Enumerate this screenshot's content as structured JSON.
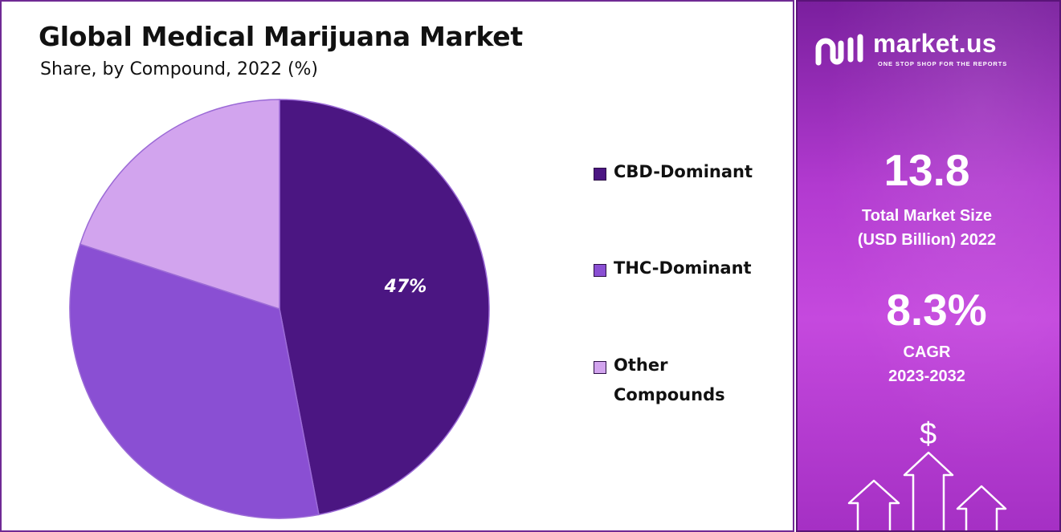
{
  "chart_data": {
    "type": "pie",
    "title": "Global Medical Marijuana Market",
    "subtitle": "Share, by Compound, 2022 (%)",
    "slices": [
      {
        "name": "CBD-Dominant",
        "value": 47,
        "label": "47%",
        "color": "#4b1682"
      },
      {
        "name": "THC-Dominant",
        "value": 33,
        "label": "",
        "color": "#8a4fd3"
      },
      {
        "name": "Other Compounds",
        "value": 20,
        "label": "",
        "color": "#d2a4ee"
      }
    ],
    "legend_position": "right"
  },
  "legend": {
    "items": [
      {
        "label": "CBD-Dominant",
        "color": "#4b1682"
      },
      {
        "label": "THC-Dominant",
        "color": "#8a4fd3"
      },
      {
        "label": "Other Compounds",
        "color": "#d2a4ee"
      }
    ]
  },
  "sidebar": {
    "logo_text": "market.us",
    "tagline": "ONE STOP SHOP FOR THE REPORTS",
    "market_size_value": "13.8",
    "market_size_label_1": "Total Market Size",
    "market_size_label_2": "(USD Billion) 2022",
    "cagr_value": "8.3%",
    "cagr_label_1": "CAGR",
    "cagr_label_2": "2023-2032",
    "dollar_symbol": "$",
    "decor_icons": [
      "market-us-logo-icon",
      "dollar-icon",
      "up-arrow-icon"
    ]
  }
}
